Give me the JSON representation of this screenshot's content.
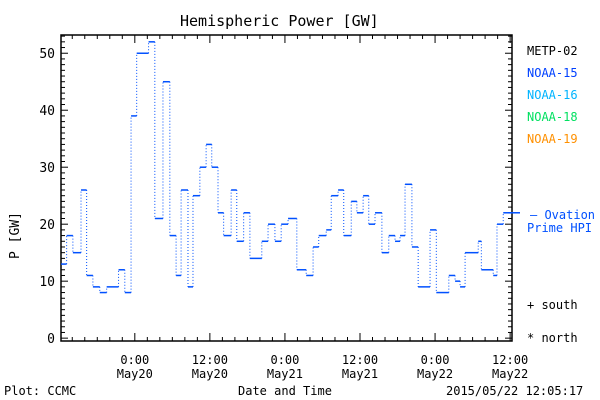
{
  "chart_data": {
    "type": "line",
    "title": "Hemispheric Power [GW]",
    "xlabel": "Date and Time",
    "ylabel": "P [GW]",
    "x_units": "hours since 2015-05-20 00:00",
    "xlim": [
      -11.8,
      60.3
    ],
    "ylim": [
      -0.5,
      53.2
    ],
    "yticks": [
      0,
      10,
      20,
      30,
      40,
      50
    ],
    "xticks": [
      {
        "h": 0,
        "time": "0:00",
        "date": "May20"
      },
      {
        "h": 12,
        "time": "12:00",
        "date": "May20"
      },
      {
        "h": 24,
        "time": "0:00",
        "date": "May21"
      },
      {
        "h": 36,
        "time": "12:00",
        "date": "May21"
      },
      {
        "h": 48,
        "time": "0:00",
        "date": "May22"
      },
      {
        "h": 60,
        "time": "12:00",
        "date": "May22"
      }
    ],
    "series": [
      {
        "name": "NOAA-15",
        "color": "#0050ff",
        "step": true,
        "x": [
          -11.8,
          -10.9,
          -9.9,
          -8.6,
          -7.7,
          -6.7,
          -5.6,
          -4.5,
          -2.6,
          -1.6,
          -0.6,
          0.3,
          2.2,
          3.2,
          4.5,
          5.6,
          6.6,
          7.4,
          8.5,
          9.3,
          10.4,
          11.4,
          12.3,
          13.3,
          14.2,
          15.4,
          16.3,
          17.4,
          18.4,
          20.3,
          21.3,
          22.4,
          23.4,
          24.5,
          25.9,
          27.4,
          28.5,
          29.4,
          30.6,
          31.4,
          32.5,
          33.4,
          34.6,
          35.5,
          36.5,
          37.4,
          38.4,
          39.5,
          40.6,
          41.6,
          42.4,
          43.2,
          44.3,
          45.3,
          47.2,
          48.2,
          50.2,
          51.2,
          52.0,
          52.8,
          54.9,
          55.4,
          57.3,
          57.9,
          58.9
        ],
        "y": [
          13,
          18,
          15,
          26,
          11,
          9,
          8,
          9,
          12,
          8,
          39,
          50,
          52,
          21,
          45,
          18,
          11,
          26,
          9,
          25,
          30,
          34,
          30,
          22,
          18,
          26,
          17,
          22,
          14,
          17,
          20,
          17,
          20,
          21,
          12,
          11,
          16,
          18,
          19,
          25,
          26,
          18,
          24,
          22,
          25,
          20,
          22,
          15,
          18,
          17,
          18,
          27,
          16,
          9,
          19,
          8,
          11,
          10,
          9,
          15,
          17,
          12,
          11,
          20,
          22
        ]
      }
    ],
    "ovation_prime": {
      "value": 22,
      "label_line1": "— Ovation",
      "label_line2": "Prime HPI",
      "color": "#0050ff"
    },
    "legend": [
      {
        "name": "METP-02",
        "color": "#000000"
      },
      {
        "name": "NOAA-15",
        "color": "#0040ff"
      },
      {
        "name": "NOAA-16",
        "color": "#00b4ff"
      },
      {
        "name": "NOAA-18",
        "color": "#00e060"
      },
      {
        "name": "NOAA-19",
        "color": "#ff9000"
      }
    ],
    "markers": {
      "south": "+ south",
      "north": "* north"
    }
  },
  "footer": {
    "plot_credit": "Plot: CCMC",
    "timestamp": "2015/05/22 12:05:17"
  }
}
